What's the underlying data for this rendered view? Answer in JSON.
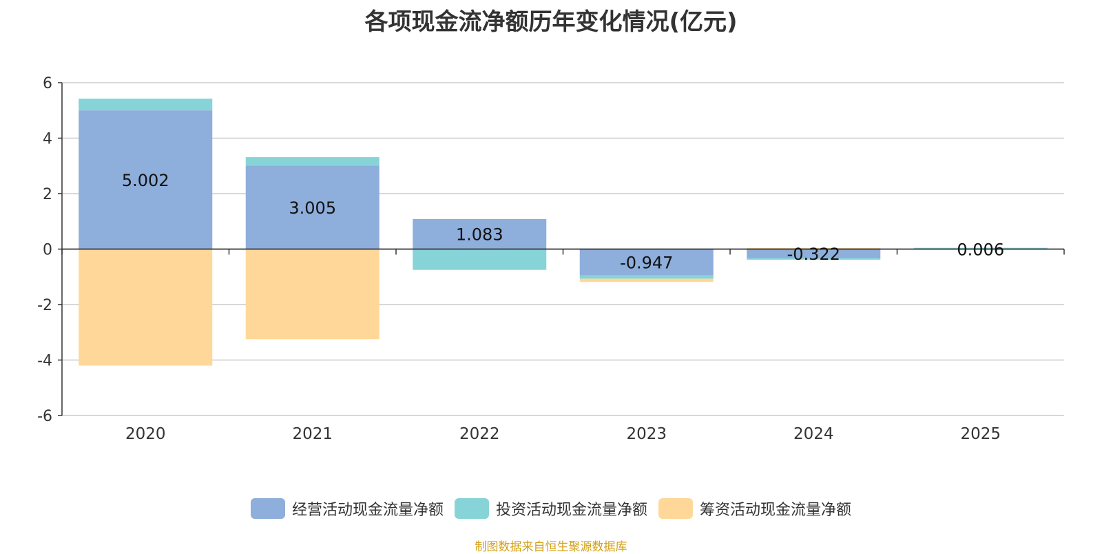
{
  "chart_data": {
    "type": "bar",
    "stacked": true,
    "title": "各项现金流净额历年变化情况(亿元)",
    "categories": [
      "2020",
      "2021",
      "2022",
      "2023",
      "2024",
      "2025"
    ],
    "series": [
      {
        "name": "经营活动现金流量净额",
        "color": "#8eaedb",
        "values": [
          5.002,
          3.005,
          1.083,
          -0.947,
          -0.322,
          0.006
        ],
        "labels": [
          "5.002",
          "3.005",
          "1.083",
          "-0.947",
          "-0.322",
          "0.006"
        ]
      },
      {
        "name": "投资活动现金流量净额",
        "color": "#86d4d7",
        "values": [
          0.42,
          0.31,
          -0.75,
          -0.12,
          -0.06,
          0.04
        ]
      },
      {
        "name": "筹资活动现金流量净额",
        "color": "#ffd899",
        "values": [
          -4.2,
          -3.25,
          0.0,
          -0.12,
          0.04,
          0.0
        ]
      }
    ],
    "ylim": [
      -6,
      6
    ],
    "yticks": [
      6,
      4,
      2,
      0,
      -2,
      -4,
      -6
    ],
    "grid": true,
    "legend_position": "bottom"
  },
  "source_note": "制图数据来自恒生聚源数据库"
}
